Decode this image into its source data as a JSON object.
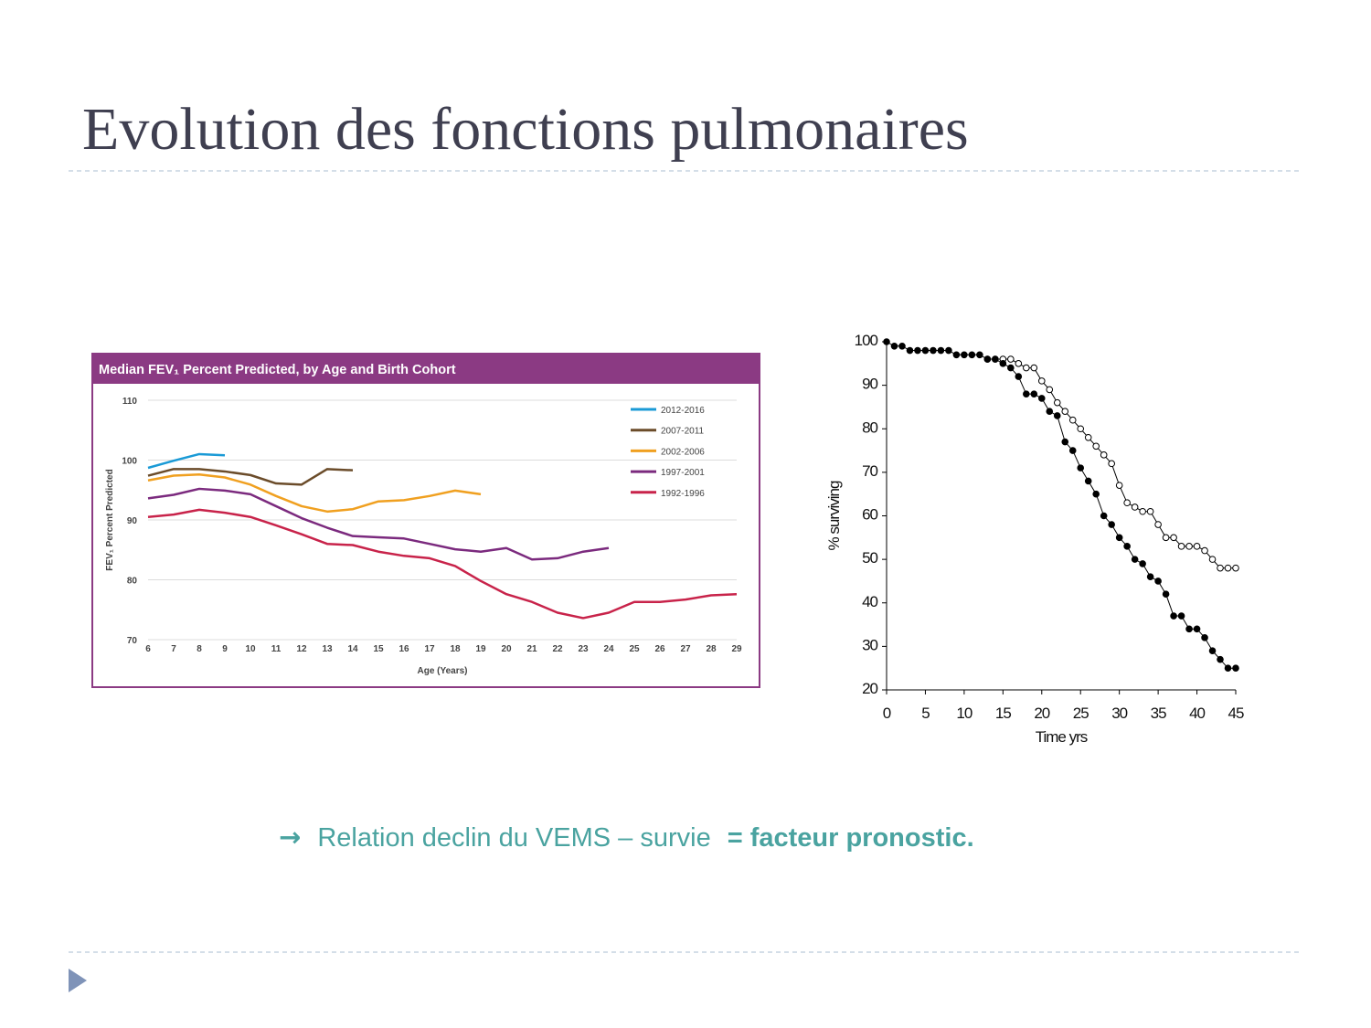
{
  "title": "Evolution des fonctions pulmonaires",
  "caption": {
    "arrow": "→",
    "text": "Relation declin du VEMS – survie",
    "emphasis": "= facteur pronostic."
  },
  "chart_data": [
    {
      "type": "line",
      "title": "Median FEV₁ Percent Predicted, by Age and Birth Cohort",
      "x_label": "Age (Years)",
      "y_label": "FEV₁ Percent Predicted",
      "x": [
        6,
        7,
        8,
        9,
        10,
        11,
        12,
        13,
        14,
        15,
        16,
        17,
        18,
        19,
        20,
        21,
        22,
        23,
        24,
        25,
        26,
        27,
        28,
        29
      ],
      "xlim": [
        6,
        29
      ],
      "xticks": [
        6,
        7,
        8,
        9,
        10,
        11,
        12,
        13,
        14,
        15,
        16,
        17,
        18,
        19,
        20,
        21,
        22,
        23,
        24,
        25,
        26,
        27,
        28,
        29
      ],
      "ylim": [
        70,
        110
      ],
      "yticks": [
        70,
        80,
        90,
        100,
        110
      ],
      "grid": true,
      "legend": "upper right",
      "series": [
        {
          "name": "2012-2016",
          "color": "#1a9ad6",
          "values": [
            98.7,
            99.9,
            101.0,
            100.8,
            null,
            null,
            null,
            null,
            null,
            null,
            null,
            null,
            null,
            null,
            null,
            null,
            null,
            null,
            null,
            null,
            null,
            null,
            null,
            null
          ]
        },
        {
          "name": "2007-2011",
          "color": "#6b4c2a",
          "values": [
            97.4,
            98.5,
            98.5,
            98.1,
            97.5,
            96.1,
            95.9,
            98.5,
            98.3,
            null,
            null,
            null,
            null,
            null,
            null,
            null,
            null,
            null,
            null,
            null,
            null,
            null,
            null,
            null
          ]
        },
        {
          "name": "2002-2006",
          "color": "#f0a020",
          "values": [
            96.6,
            97.4,
            97.6,
            97.1,
            95.9,
            94.0,
            92.3,
            91.4,
            91.8,
            93.1,
            93.3,
            94.0,
            94.9,
            94.3,
            null,
            null,
            null,
            null,
            null,
            null,
            null,
            null,
            null,
            null
          ]
        },
        {
          "name": "1997-2001",
          "color": "#7b2a7e",
          "values": [
            93.6,
            94.2,
            95.2,
            94.9,
            94.3,
            92.3,
            90.3,
            88.7,
            87.3,
            87.1,
            86.9,
            86.0,
            85.1,
            84.7,
            85.3,
            83.4,
            83.6,
            84.7,
            85.3,
            null,
            null,
            null,
            null,
            null
          ]
        },
        {
          "name": "1992-1996",
          "color": "#c8234a",
          "values": [
            90.5,
            90.9,
            91.7,
            91.2,
            90.5,
            89.1,
            87.6,
            86.0,
            85.8,
            84.7,
            84.0,
            83.6,
            82.3,
            79.8,
            77.6,
            76.3,
            74.5,
            73.6,
            74.5,
            76.3,
            76.3,
            76.7,
            77.4,
            77.6
          ]
        }
      ]
    },
    {
      "type": "line",
      "x_label": "Time yrs",
      "y_label": "% surviving",
      "x": [
        0,
        1,
        2,
        3,
        4,
        5,
        6,
        7,
        8,
        9,
        10,
        11,
        12,
        13,
        14,
        15,
        16,
        17,
        18,
        19,
        20,
        21,
        22,
        23,
        24,
        25,
        26,
        27,
        28,
        29,
        30,
        31,
        32,
        33,
        34,
        35,
        36,
        37,
        38,
        39,
        40,
        41,
        42,
        43,
        44,
        45
      ],
      "xlim": [
        0,
        45
      ],
      "xticks": [
        0,
        5,
        10,
        15,
        20,
        25,
        30,
        35,
        40,
        45
      ],
      "ylim": [
        20,
        100
      ],
      "yticks": [
        20,
        30,
        40,
        50,
        60,
        70,
        80,
        90,
        100
      ],
      "grid": false,
      "series": [
        {
          "color": "#000000",
          "marker_fill": "#ffffff",
          "values": [
            null,
            null,
            null,
            null,
            null,
            null,
            null,
            null,
            null,
            null,
            null,
            null,
            null,
            96,
            96,
            96,
            96,
            95,
            94,
            94,
            91,
            89,
            86,
            84,
            82,
            80,
            78,
            76,
            74,
            72,
            67,
            63,
            62,
            61,
            61,
            58,
            55,
            55,
            53,
            53,
            53,
            52,
            50,
            48,
            48,
            48
          ]
        },
        {
          "color": "#000000",
          "marker_fill": "#000000",
          "values": [
            100,
            99,
            99,
            98,
            98,
            98,
            98,
            98,
            98,
            97,
            97,
            97,
            97,
            96,
            96,
            95,
            94,
            92,
            88,
            88,
            87,
            84,
            83,
            77,
            75,
            71,
            68,
            65,
            60,
            58,
            55,
            53,
            50,
            49,
            46,
            45,
            42,
            37,
            37,
            34,
            34,
            32,
            29,
            27,
            25,
            25
          ]
        }
      ]
    }
  ]
}
